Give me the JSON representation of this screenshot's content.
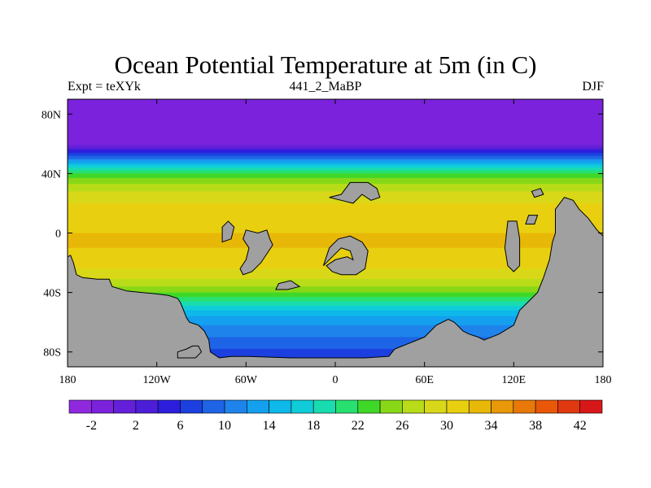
{
  "title": "Ocean Potential Temperature at 5m (in C)",
  "left_string": "Expt = teXYk",
  "center_string": "441_2_MaBP",
  "right_string": "DJF",
  "chart_data": {
    "type": "heatmap",
    "title": "Ocean Potential Temperature at 5m (in C)",
    "x_range": [
      -180,
      180
    ],
    "y_range": [
      -90,
      90
    ],
    "x_ticks": [
      "180",
      "120W",
      "60W",
      "0",
      "60E",
      "120E",
      "180"
    ],
    "y_ticks": [
      "80N",
      "40N",
      "0",
      "40S",
      "80S"
    ],
    "colorbar": {
      "min": -4,
      "max": 44,
      "step": 2,
      "labels": [
        "-2",
        "2",
        "6",
        "10",
        "14",
        "18",
        "22",
        "26",
        "30",
        "34",
        "38",
        "42"
      ],
      "colors": [
        "#9028e0",
        "#7a22dc",
        "#6420d8",
        "#4c1ed8",
        "#2c1edc",
        "#1c40e0",
        "#1e64e6",
        "#1e84ec",
        "#14a0ee",
        "#0eb8ea",
        "#10ccd8",
        "#18dcb0",
        "#28e070",
        "#40d828",
        "#88d818",
        "#b8dc18",
        "#d8d818",
        "#e8d010",
        "#e8b808",
        "#e89808",
        "#e87808",
        "#e85808",
        "#e03810",
        "#d81818"
      ]
    },
    "land_color": "#a0a0a0",
    "zonal_mean_temperature": [
      {
        "lat": 90,
        "value": -2
      },
      {
        "lat": 60,
        "value": -1.5
      },
      {
        "lat": 56,
        "value": 4
      },
      {
        "lat": 52,
        "value": 8
      },
      {
        "lat": 48,
        "value": 13
      },
      {
        "lat": 44,
        "value": 18
      },
      {
        "lat": 40,
        "value": 22
      },
      {
        "lat": 34,
        "value": 25.5
      },
      {
        "lat": 28,
        "value": 28
      },
      {
        "lat": 20,
        "value": 30
      },
      {
        "lat": 10,
        "value": 31.5
      },
      {
        "lat": 0,
        "value": 32
      },
      {
        "lat": -10,
        "value": 32
      },
      {
        "lat": -20,
        "value": 31
      },
      {
        "lat": -30,
        "value": 28.5
      },
      {
        "lat": -38,
        "value": 25
      },
      {
        "lat": -44,
        "value": 21
      },
      {
        "lat": -50,
        "value": 17
      },
      {
        "lat": -56,
        "value": 14
      },
      {
        "lat": -62,
        "value": 12
      },
      {
        "lat": -70,
        "value": 10
      },
      {
        "lat": -78,
        "value": 8
      },
      {
        "lat": -85,
        "value": 6
      }
    ],
    "land_masses": [
      {
        "name": "south-america-antarctica-landmass",
        "points": [
          [
            -180,
            -16
          ],
          [
            -178,
            -15
          ],
          [
            -176,
            -20
          ],
          [
            -174,
            -28
          ],
          [
            -170,
            -30
          ],
          [
            -160,
            -31
          ],
          [
            -152,
            -31
          ],
          [
            -150,
            -36
          ],
          [
            -140,
            -39
          ],
          [
            -130,
            -40
          ],
          [
            -120,
            -41
          ],
          [
            -112,
            -42
          ],
          [
            -106,
            -44
          ],
          [
            -104,
            -47
          ],
          [
            -102,
            -52
          ],
          [
            -100,
            -57
          ],
          [
            -98,
            -60
          ],
          [
            -92,
            -62
          ],
          [
            -88,
            -66
          ],
          [
            -85,
            -72
          ],
          [
            -84,
            -80
          ],
          [
            -78,
            -84
          ],
          [
            -70,
            -83
          ],
          [
            -58,
            -83
          ],
          [
            -30,
            -84
          ],
          [
            0,
            -84
          ],
          [
            20,
            -84
          ],
          [
            36,
            -83
          ],
          [
            40,
            -78
          ],
          [
            50,
            -74
          ],
          [
            60,
            -70
          ],
          [
            68,
            -62
          ],
          [
            76,
            -58
          ],
          [
            80,
            -60
          ],
          [
            86,
            -66
          ],
          [
            90,
            -68
          ],
          [
            96,
            -70
          ],
          [
            100,
            -72
          ],
          [
            110,
            -68
          ],
          [
            120,
            -62
          ],
          [
            124,
            -52
          ],
          [
            130,
            -46
          ],
          [
            136,
            -40
          ],
          [
            140,
            -30
          ],
          [
            144,
            -18
          ],
          [
            146,
            -6
          ],
          [
            148,
            0
          ],
          [
            148,
            16
          ],
          [
            154,
            24
          ],
          [
            160,
            22
          ],
          [
            164,
            16
          ],
          [
            170,
            10
          ],
          [
            176,
            2
          ],
          [
            180,
            -2
          ],
          [
            180,
            -90
          ],
          [
            -180,
            -90
          ]
        ]
      },
      {
        "name": "west-antarctic-peninsula",
        "points": [
          [
            -106,
            -80
          ],
          [
            -100,
            -78
          ],
          [
            -96,
            -76
          ],
          [
            -92,
            -76
          ],
          [
            -90,
            -80
          ],
          [
            -94,
            -84
          ],
          [
            -106,
            -84
          ]
        ]
      },
      {
        "name": "central-continent",
        "points": [
          [
            -60,
            2
          ],
          [
            -52,
            0
          ],
          [
            -46,
            2
          ],
          [
            -44,
            -4
          ],
          [
            -42,
            -8
          ],
          [
            -46,
            -14
          ],
          [
            -50,
            -20
          ],
          [
            -56,
            -26
          ],
          [
            -62,
            -28
          ],
          [
            -64,
            -24
          ],
          [
            -60,
            -18
          ],
          [
            -58,
            -10
          ],
          [
            -62,
            -4
          ]
        ]
      },
      {
        "name": "northwest-island",
        "points": [
          [
            -76,
            -6
          ],
          [
            -70,
            -4
          ],
          [
            -68,
            4
          ],
          [
            -72,
            8
          ],
          [
            -76,
            4
          ]
        ]
      },
      {
        "name": "ring-continent",
        "points": [
          [
            -8,
            -22
          ],
          [
            -4,
            -10
          ],
          [
            2,
            -4
          ],
          [
            10,
            -2
          ],
          [
            18,
            -6
          ],
          [
            22,
            -12
          ],
          [
            20,
            -24
          ],
          [
            14,
            -28
          ],
          [
            4,
            -28
          ],
          [
            -2,
            -26
          ],
          [
            -6,
            -22
          ],
          [
            0,
            -18
          ],
          [
            8,
            -16
          ],
          [
            12,
            -18
          ],
          [
            10,
            -12
          ],
          [
            4,
            -10
          ],
          [
            -2,
            -16
          ]
        ]
      },
      {
        "name": "southern-strip",
        "points": [
          [
            -38,
            -34
          ],
          [
            -30,
            -32
          ],
          [
            -24,
            -36
          ],
          [
            -32,
            -38
          ],
          [
            -40,
            -38
          ]
        ]
      },
      {
        "name": "northern-continent",
        "points": [
          [
            -4,
            24
          ],
          [
            4,
            26
          ],
          [
            10,
            34
          ],
          [
            22,
            34
          ],
          [
            28,
            30
          ],
          [
            30,
            24
          ],
          [
            24,
            22
          ],
          [
            18,
            26
          ],
          [
            12,
            20
          ],
          [
            4,
            22
          ]
        ]
      },
      {
        "name": "eastern-strip",
        "points": [
          [
            116,
            8
          ],
          [
            122,
            8
          ],
          [
            124,
            -4
          ],
          [
            124,
            -22
          ],
          [
            120,
            -26
          ],
          [
            116,
            -22
          ],
          [
            114,
            -10
          ]
        ]
      },
      {
        "name": "eastern-islets",
        "points": [
          [
            130,
            12
          ],
          [
            136,
            12
          ],
          [
            134,
            6
          ],
          [
            128,
            6
          ]
        ]
      },
      {
        "name": "far-east-island",
        "points": [
          [
            132,
            28
          ],
          [
            138,
            30
          ],
          [
            140,
            26
          ],
          [
            134,
            24
          ]
        ]
      }
    ]
  }
}
